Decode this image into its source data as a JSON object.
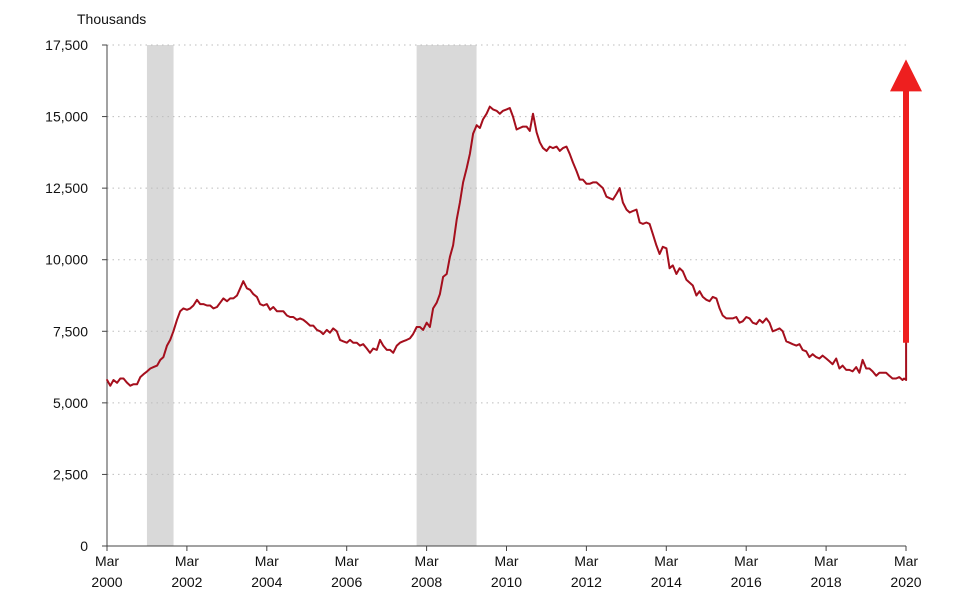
{
  "chart_data": {
    "type": "line",
    "unit_label": "Thousands",
    "y_ticks": [
      "0",
      "2,500",
      "5,000",
      "7,500",
      "10,000",
      "12,500",
      "15,000",
      "17,500"
    ],
    "y_tick_values": [
      0,
      2500,
      5000,
      7500,
      10000,
      12500,
      15000,
      17500
    ],
    "ylim": [
      0,
      17500
    ],
    "xlim": [
      2000.167,
      2020.167
    ],
    "x_ticks": [
      {
        "month": "Mar",
        "year": "2000",
        "x": 2000.167
      },
      {
        "month": "Mar",
        "year": "2002",
        "x": 2002.167
      },
      {
        "month": "Mar",
        "year": "2004",
        "x": 2004.167
      },
      {
        "month": "Mar",
        "year": "2006",
        "x": 2006.167
      },
      {
        "month": "Mar",
        "year": "2008",
        "x": 2008.167
      },
      {
        "month": "Mar",
        "year": "2010",
        "x": 2010.167
      },
      {
        "month": "Mar",
        "year": "2012",
        "x": 2012.167
      },
      {
        "month": "Mar",
        "year": "2014",
        "x": 2014.167
      },
      {
        "month": "Mar",
        "year": "2016",
        "x": 2016.167
      },
      {
        "month": "Mar",
        "year": "2018",
        "x": 2018.167
      },
      {
        "month": "Mar",
        "year": "2020",
        "x": 2020.167
      }
    ],
    "grid": "horizontal dotted",
    "recessions": [
      {
        "start": 2001.167,
        "end": 2001.833
      },
      {
        "start": 2007.917,
        "end": 2009.417
      }
    ],
    "series": [
      {
        "color": "#a50f1d",
        "points": [
          [
            2000.17,
            5800
          ],
          [
            2000.25,
            5600
          ],
          [
            2000.33,
            5800
          ],
          [
            2000.42,
            5700
          ],
          [
            2000.5,
            5850
          ],
          [
            2000.58,
            5850
          ],
          [
            2000.67,
            5700
          ],
          [
            2000.75,
            5600
          ],
          [
            2000.83,
            5650
          ],
          [
            2000.92,
            5650
          ],
          [
            2001.0,
            5900
          ],
          [
            2001.08,
            6000
          ],
          [
            2001.17,
            6100
          ],
          [
            2001.25,
            6200
          ],
          [
            2001.33,
            6250
          ],
          [
            2001.42,
            6300
          ],
          [
            2001.5,
            6500
          ],
          [
            2001.58,
            6600
          ],
          [
            2001.67,
            7000
          ],
          [
            2001.75,
            7200
          ],
          [
            2001.83,
            7500
          ],
          [
            2001.92,
            7900
          ],
          [
            2002.0,
            8200
          ],
          [
            2002.08,
            8300
          ],
          [
            2002.17,
            8250
          ],
          [
            2002.25,
            8300
          ],
          [
            2002.33,
            8400
          ],
          [
            2002.42,
            8600
          ],
          [
            2002.5,
            8450
          ],
          [
            2002.58,
            8450
          ],
          [
            2002.67,
            8400
          ],
          [
            2002.75,
            8400
          ],
          [
            2002.83,
            8300
          ],
          [
            2002.92,
            8350
          ],
          [
            2003.0,
            8500
          ],
          [
            2003.08,
            8650
          ],
          [
            2003.17,
            8550
          ],
          [
            2003.25,
            8650
          ],
          [
            2003.33,
            8650
          ],
          [
            2003.42,
            8750
          ],
          [
            2003.5,
            9000
          ],
          [
            2003.58,
            9250
          ],
          [
            2003.67,
            9000
          ],
          [
            2003.75,
            8950
          ],
          [
            2003.83,
            8800
          ],
          [
            2003.92,
            8700
          ],
          [
            2004.0,
            8450
          ],
          [
            2004.08,
            8400
          ],
          [
            2004.17,
            8450
          ],
          [
            2004.25,
            8250
          ],
          [
            2004.33,
            8350
          ],
          [
            2004.42,
            8200
          ],
          [
            2004.5,
            8200
          ],
          [
            2004.58,
            8200
          ],
          [
            2004.67,
            8050
          ],
          [
            2004.75,
            8000
          ],
          [
            2004.83,
            8000
          ],
          [
            2004.92,
            7900
          ],
          [
            2005.0,
            7950
          ],
          [
            2005.08,
            7900
          ],
          [
            2005.17,
            7800
          ],
          [
            2005.25,
            7700
          ],
          [
            2005.33,
            7700
          ],
          [
            2005.42,
            7550
          ],
          [
            2005.5,
            7500
          ],
          [
            2005.58,
            7400
          ],
          [
            2005.67,
            7550
          ],
          [
            2005.75,
            7450
          ],
          [
            2005.83,
            7600
          ],
          [
            2005.92,
            7500
          ],
          [
            2006.0,
            7200
          ],
          [
            2006.08,
            7150
          ],
          [
            2006.17,
            7100
          ],
          [
            2006.25,
            7200
          ],
          [
            2006.33,
            7100
          ],
          [
            2006.42,
            7100
          ],
          [
            2006.5,
            7000
          ],
          [
            2006.58,
            7050
          ],
          [
            2006.67,
            6900
          ],
          [
            2006.75,
            6750
          ],
          [
            2006.83,
            6900
          ],
          [
            2006.92,
            6850
          ],
          [
            2007.0,
            7200
          ],
          [
            2007.08,
            7000
          ],
          [
            2007.17,
            6850
          ],
          [
            2007.25,
            6850
          ],
          [
            2007.33,
            6750
          ],
          [
            2007.42,
            7000
          ],
          [
            2007.5,
            7100
          ],
          [
            2007.58,
            7150
          ],
          [
            2007.67,
            7200
          ],
          [
            2007.75,
            7250
          ],
          [
            2007.83,
            7400
          ],
          [
            2007.92,
            7650
          ],
          [
            2008.0,
            7650
          ],
          [
            2008.08,
            7550
          ],
          [
            2008.17,
            7800
          ],
          [
            2008.25,
            7650
          ],
          [
            2008.33,
            8300
          ],
          [
            2008.42,
            8500
          ],
          [
            2008.5,
            8800
          ],
          [
            2008.58,
            9400
          ],
          [
            2008.67,
            9500
          ],
          [
            2008.75,
            10100
          ],
          [
            2008.83,
            10500
          ],
          [
            2008.92,
            11400
          ],
          [
            2009.0,
            12000
          ],
          [
            2009.08,
            12700
          ],
          [
            2009.17,
            13200
          ],
          [
            2009.25,
            13700
          ],
          [
            2009.33,
            14400
          ],
          [
            2009.42,
            14700
          ],
          [
            2009.5,
            14600
          ],
          [
            2009.58,
            14900
          ],
          [
            2009.67,
            15100
          ],
          [
            2009.75,
            15350
          ],
          [
            2009.83,
            15250
          ],
          [
            2009.92,
            15200
          ],
          [
            2010.0,
            15100
          ],
          [
            2010.08,
            15200
          ],
          [
            2010.17,
            15250
          ],
          [
            2010.25,
            15300
          ],
          [
            2010.33,
            15000
          ],
          [
            2010.42,
            14550
          ],
          [
            2010.5,
            14600
          ],
          [
            2010.58,
            14650
          ],
          [
            2010.67,
            14650
          ],
          [
            2010.75,
            14500
          ],
          [
            2010.83,
            15100
          ],
          [
            2010.92,
            14450
          ],
          [
            2011.0,
            14100
          ],
          [
            2011.08,
            13900
          ],
          [
            2011.17,
            13800
          ],
          [
            2011.25,
            13950
          ],
          [
            2011.33,
            13900
          ],
          [
            2011.42,
            13950
          ],
          [
            2011.5,
            13800
          ],
          [
            2011.58,
            13900
          ],
          [
            2011.67,
            13950
          ],
          [
            2011.75,
            13700
          ],
          [
            2011.83,
            13400
          ],
          [
            2011.92,
            13100
          ],
          [
            2012.0,
            12800
          ],
          [
            2012.08,
            12800
          ],
          [
            2012.17,
            12650
          ],
          [
            2012.25,
            12650
          ],
          [
            2012.33,
            12700
          ],
          [
            2012.42,
            12700
          ],
          [
            2012.5,
            12600
          ],
          [
            2012.58,
            12500
          ],
          [
            2012.67,
            12200
          ],
          [
            2012.75,
            12150
          ],
          [
            2012.83,
            12100
          ],
          [
            2012.92,
            12300
          ],
          [
            2013.0,
            12500
          ],
          [
            2013.08,
            12000
          ],
          [
            2013.17,
            11750
          ],
          [
            2013.25,
            11650
          ],
          [
            2013.33,
            11700
          ],
          [
            2013.42,
            11750
          ],
          [
            2013.5,
            11300
          ],
          [
            2013.58,
            11250
          ],
          [
            2013.67,
            11300
          ],
          [
            2013.75,
            11250
          ],
          [
            2013.83,
            10900
          ],
          [
            2013.92,
            10500
          ],
          [
            2014.0,
            10200
          ],
          [
            2014.08,
            10450
          ],
          [
            2014.17,
            10400
          ],
          [
            2014.25,
            9700
          ],
          [
            2014.33,
            9800
          ],
          [
            2014.42,
            9500
          ],
          [
            2014.5,
            9700
          ],
          [
            2014.58,
            9600
          ],
          [
            2014.67,
            9300
          ],
          [
            2014.75,
            9200
          ],
          [
            2014.83,
            9100
          ],
          [
            2014.92,
            8750
          ],
          [
            2015.0,
            8900
          ],
          [
            2015.08,
            8700
          ],
          [
            2015.17,
            8600
          ],
          [
            2015.25,
            8550
          ],
          [
            2015.33,
            8700
          ],
          [
            2015.42,
            8650
          ],
          [
            2015.5,
            8300
          ],
          [
            2015.58,
            8050
          ],
          [
            2015.67,
            7950
          ],
          [
            2015.75,
            7950
          ],
          [
            2015.83,
            7950
          ],
          [
            2015.92,
            8000
          ],
          [
            2016.0,
            7800
          ],
          [
            2016.08,
            7850
          ],
          [
            2016.17,
            8000
          ],
          [
            2016.25,
            7950
          ],
          [
            2016.33,
            7800
          ],
          [
            2016.42,
            7750
          ],
          [
            2016.5,
            7900
          ],
          [
            2016.58,
            7800
          ],
          [
            2016.67,
            7950
          ],
          [
            2016.75,
            7800
          ],
          [
            2016.83,
            7500
          ],
          [
            2016.92,
            7550
          ],
          [
            2017.0,
            7600
          ],
          [
            2017.08,
            7500
          ],
          [
            2017.17,
            7150
          ],
          [
            2017.25,
            7100
          ],
          [
            2017.33,
            7050
          ],
          [
            2017.42,
            7000
          ],
          [
            2017.5,
            7050
          ],
          [
            2017.58,
            6850
          ],
          [
            2017.67,
            6800
          ],
          [
            2017.75,
            6600
          ],
          [
            2017.83,
            6700
          ],
          [
            2017.92,
            6600
          ],
          [
            2018.0,
            6550
          ],
          [
            2018.08,
            6650
          ],
          [
            2018.17,
            6550
          ],
          [
            2018.25,
            6450
          ],
          [
            2018.33,
            6350
          ],
          [
            2018.42,
            6550
          ],
          [
            2018.5,
            6200
          ],
          [
            2018.58,
            6300
          ],
          [
            2018.67,
            6150
          ],
          [
            2018.75,
            6150
          ],
          [
            2018.83,
            6100
          ],
          [
            2018.92,
            6250
          ],
          [
            2019.0,
            6050
          ],
          [
            2019.08,
            6500
          ],
          [
            2019.17,
            6200
          ],
          [
            2019.25,
            6200
          ],
          [
            2019.33,
            6100
          ],
          [
            2019.42,
            5950
          ],
          [
            2019.5,
            6050
          ],
          [
            2019.58,
            6050
          ],
          [
            2019.67,
            6050
          ],
          [
            2019.75,
            5950
          ],
          [
            2019.83,
            5850
          ],
          [
            2019.92,
            5850
          ],
          [
            2020.0,
            5900
          ],
          [
            2020.08,
            5800
          ],
          [
            2020.12,
            5850
          ],
          [
            2020.17,
            5800
          ],
          [
            2020.17,
            7100
          ]
        ]
      }
    ],
    "arrow": {
      "color": "#ee1f1f",
      "x": 2020.167,
      "from_y": 7100,
      "to_y": 17000
    }
  }
}
